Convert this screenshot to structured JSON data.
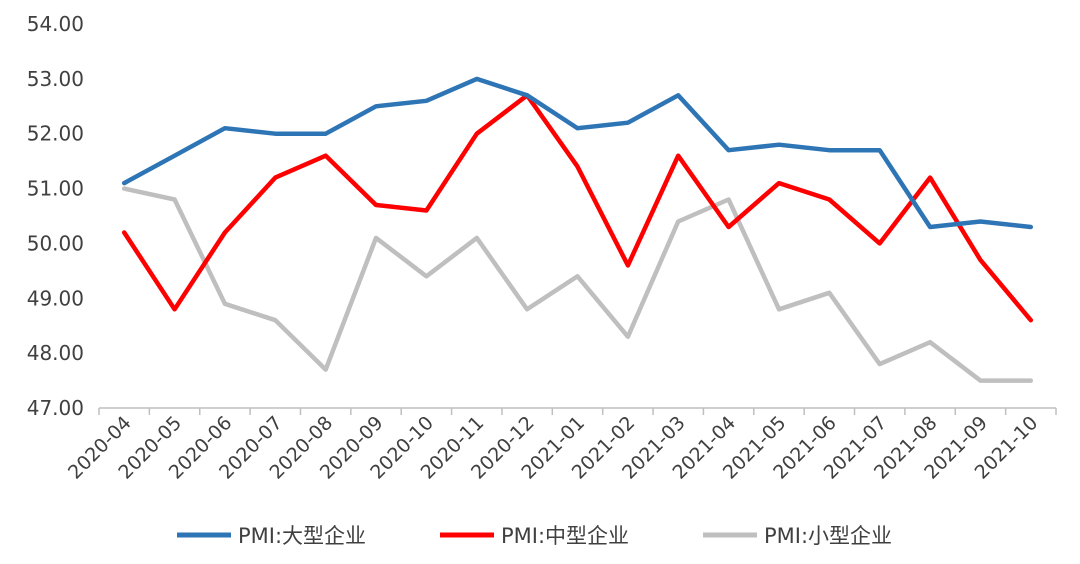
{
  "chart_data": {
    "type": "line",
    "categories": [
      "2020-04",
      "2020-05",
      "2020-06",
      "2020-07",
      "2020-08",
      "2020-09",
      "2020-10",
      "2020-11",
      "2020-12",
      "2021-01",
      "2021-02",
      "2021-03",
      "2021-04",
      "2021-05",
      "2021-06",
      "2021-07",
      "2021-08",
      "2021-09",
      "2021-10"
    ],
    "ylim": [
      47.0,
      54.0
    ],
    "yticks": [
      "47.00",
      "48.00",
      "49.00",
      "50.00",
      "51.00",
      "52.00",
      "53.00",
      "54.00"
    ],
    "grid": false,
    "legend_position": "bottom",
    "series": [
      {
        "name": "PMI:大型企业",
        "color": "#2e75b6",
        "values": [
          51.1,
          51.6,
          52.1,
          52.0,
          52.0,
          52.5,
          52.6,
          53.0,
          52.7,
          52.1,
          52.2,
          52.7,
          51.7,
          51.8,
          51.7,
          51.7,
          50.3,
          50.4,
          50.3
        ]
      },
      {
        "name": "PMI:中型企业",
        "color": "#ff0000",
        "values": [
          50.2,
          48.8,
          50.2,
          51.2,
          51.6,
          50.7,
          50.6,
          52.0,
          52.7,
          51.4,
          49.6,
          51.6,
          50.3,
          51.1,
          50.8,
          50.0,
          51.2,
          49.7,
          48.6
        ]
      },
      {
        "name": "PMI:小型企业",
        "color": "#bfbfbf",
        "values": [
          51.0,
          50.8,
          48.9,
          48.6,
          47.7,
          50.1,
          49.4,
          50.1,
          48.8,
          49.4,
          48.3,
          50.4,
          50.8,
          48.8,
          49.1,
          47.8,
          48.2,
          47.5,
          47.5
        ]
      }
    ]
  }
}
